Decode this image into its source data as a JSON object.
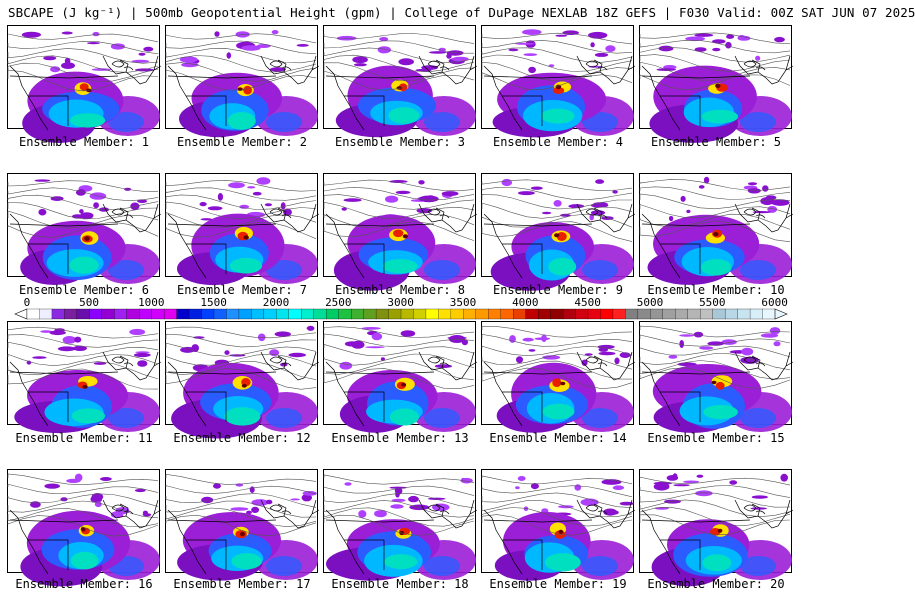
{
  "title": "SBCAPE (J kg⁻¹) | 500mb Geopotential Height (gpm) | College of DuPage NEXLAB 18Z GEFS | F030 Valid: 00Z SAT JUN 07 2025",
  "member_prefix": "Ensemble Member: ",
  "members": [
    "1",
    "2",
    "3",
    "4",
    "5",
    "6",
    "7",
    "8",
    "9",
    "10",
    "11",
    "12",
    "13",
    "14",
    "15",
    "16",
    "17",
    "18",
    "19",
    "20"
  ],
  "colorbar": {
    "tick_labels": [
      "0",
      "500",
      "1000",
      "1500",
      "2000",
      "2500",
      "3000",
      "3500",
      "4000",
      "4500",
      "5000",
      "5500",
      "6000"
    ],
    "colors": [
      "#ffffff",
      "#eeeeff",
      "#8a2be2",
      "#7a1fa0",
      "#6a0dad",
      "#8b00ff",
      "#9400d3",
      "#a020f0",
      "#b000e0",
      "#c000ff",
      "#d000ff",
      "#e000f0",
      "#0000cd",
      "#0020e0",
      "#0040ff",
      "#1060ff",
      "#1e90ff",
      "#00a0ff",
      "#00bfff",
      "#00d0ff",
      "#00e5ee",
      "#00ffff",
      "#00eecc",
      "#00dd99",
      "#00cc66",
      "#20c040",
      "#40b030",
      "#60a020",
      "#809010",
      "#9aa000",
      "#b8b800",
      "#d0d000",
      "#ffff00",
      "#ffe000",
      "#ffcc00",
      "#ffb000",
      "#ff9900",
      "#ff8000",
      "#ff6600",
      "#e84000",
      "#c00000",
      "#a00000",
      "#900000",
      "#b00010",
      "#d00010",
      "#e80010",
      "#ff0000",
      "#ff2020",
      "#808080",
      "#8a8a8a",
      "#959595",
      "#a0a0a0",
      "#aaaaaa",
      "#b5b5b5",
      "#c0c0c0",
      "#a8c8d8",
      "#b8d8e8",
      "#c8e4f0",
      "#d8eef8",
      "#e8f6ff"
    ]
  }
}
